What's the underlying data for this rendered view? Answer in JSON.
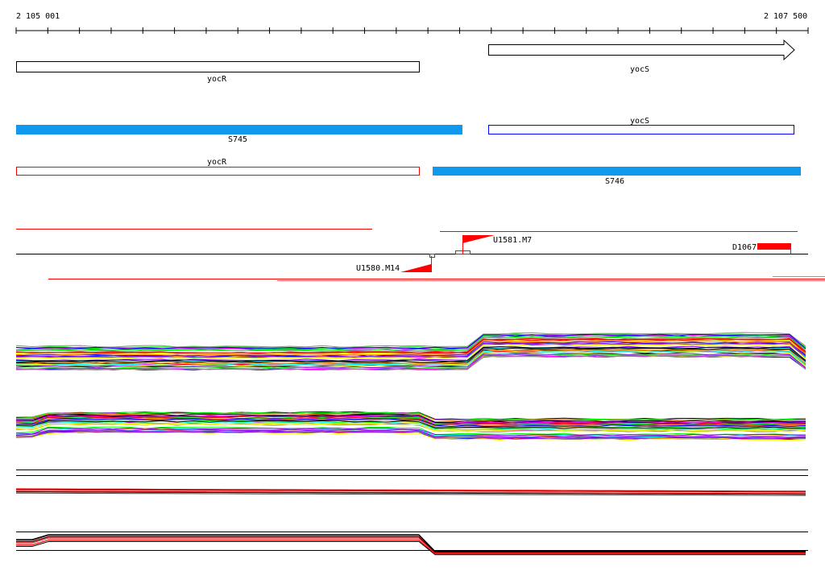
{
  "ruler": {
    "start_label": "2 105 001",
    "end_label": "2 107 500"
  },
  "genes_strand": [
    {
      "label": "yocR",
      "strand": "reverse"
    },
    {
      "label": "yocS",
      "strand": "forward"
    }
  ],
  "segments_row1": [
    {
      "label": "S745"
    },
    {
      "label": "yocS"
    }
  ],
  "segments_row2": [
    {
      "label": "yocR"
    },
    {
      "label": "S746"
    }
  ],
  "features": [
    {
      "label": "U1581.M7"
    },
    {
      "label": "U1580.M14"
    },
    {
      "label": "D1067"
    }
  ],
  "colors": {
    "accent_blue": "#1199ee",
    "red": "#ff0000",
    "blue": "#0000ff"
  },
  "trace_palette": [
    "#ff00ff",
    "#00ffff",
    "#00ff00",
    "#ff0000",
    "#0000ff",
    "#ffff00",
    "#ff8800",
    "#888888",
    "#000000",
    "#8800ff"
  ]
}
